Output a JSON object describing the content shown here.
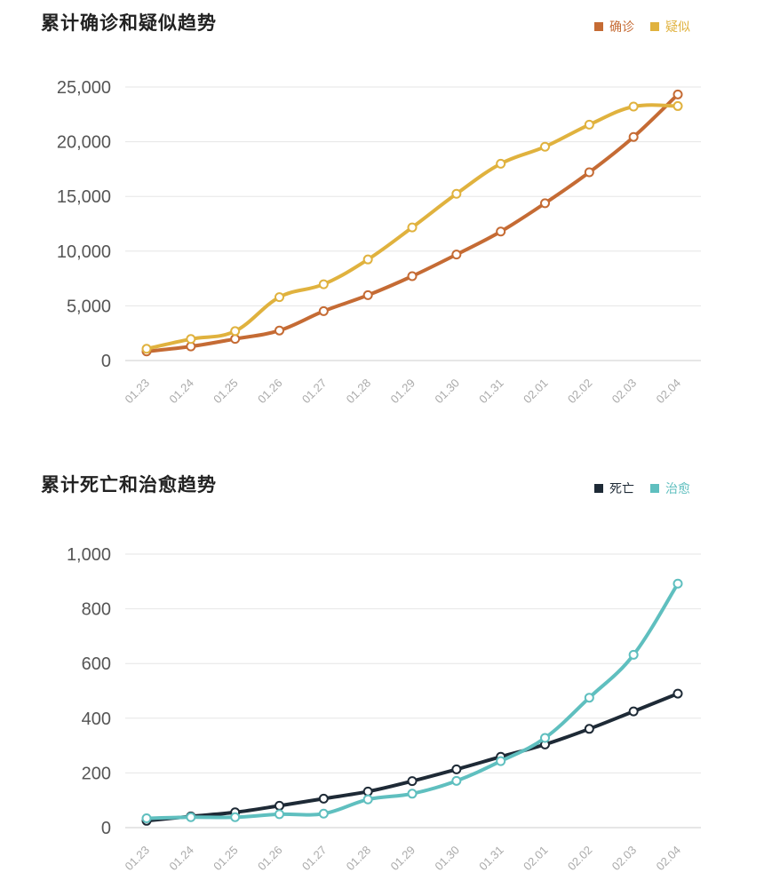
{
  "charts": [
    {
      "title": "累计确诊和疑似趋势",
      "legend": [
        {
          "name": "确诊",
          "color": "#c56b34"
        },
        {
          "name": "疑似",
          "color": "#e0b23e"
        }
      ],
      "chart_data": {
        "type": "line",
        "title": "累计确诊和疑似趋势",
        "xlabel": "",
        "ylabel": "",
        "categories": [
          "01.23",
          "01.24",
          "01.25",
          "01.26",
          "01.27",
          "01.28",
          "01.29",
          "01.30",
          "01.31",
          "02.01",
          "02.02",
          "02.03",
          "02.04"
        ],
        "ylim": [
          0,
          25000
        ],
        "yticks": [
          0,
          5000,
          10000,
          15000,
          20000,
          25000
        ],
        "ytick_labels": [
          "0",
          "5,000",
          "10,000",
          "15,000",
          "20,000",
          "25,000"
        ],
        "grid": true,
        "legend_position": "top-right",
        "series": [
          {
            "name": "确诊",
            "color": "#c56b34",
            "values": [
              830,
              1287,
              1975,
              2744,
              4515,
              5974,
              7711,
              9692,
              11791,
              14380,
              17205,
              20438,
              24324
            ]
          },
          {
            "name": "疑似",
            "color": "#e0b23e",
            "values": [
              1072,
              1965,
              2684,
              5794,
              6973,
              9239,
              12167,
              15238,
              17988,
              19544,
              21558,
              23214,
              23260
            ]
          }
        ]
      }
    },
    {
      "title": "累计死亡和治愈趋势",
      "legend": [
        {
          "name": "死亡",
          "color": "#1e2a36"
        },
        {
          "name": "治愈",
          "color": "#5fbfbf"
        }
      ],
      "chart_data": {
        "type": "line",
        "title": "累计死亡和治愈趋势",
        "xlabel": "",
        "ylabel": "",
        "categories": [
          "01.23",
          "01.24",
          "01.25",
          "01.26",
          "01.27",
          "01.28",
          "01.29",
          "01.30",
          "01.31",
          "02.01",
          "02.02",
          "02.03",
          "02.04"
        ],
        "ylim": [
          0,
          1000
        ],
        "yticks": [
          0,
          200,
          400,
          600,
          800,
          1000
        ],
        "ytick_labels": [
          "0",
          "200",
          "400",
          "600",
          "800",
          "1,000"
        ],
        "grid": true,
        "legend_position": "top-right",
        "series": [
          {
            "name": "死亡",
            "color": "#1e2a36",
            "values": [
              25,
              41,
              56,
              80,
              106,
              132,
              170,
              213,
              259,
              304,
              361,
              425,
              490
            ]
          },
          {
            "name": "治愈",
            "color": "#5fbfbf",
            "values": [
              34,
              38,
              38,
              49,
              51,
              103,
              124,
              171,
              243,
              328,
              475,
              632,
              892
            ]
          }
        ]
      }
    }
  ]
}
